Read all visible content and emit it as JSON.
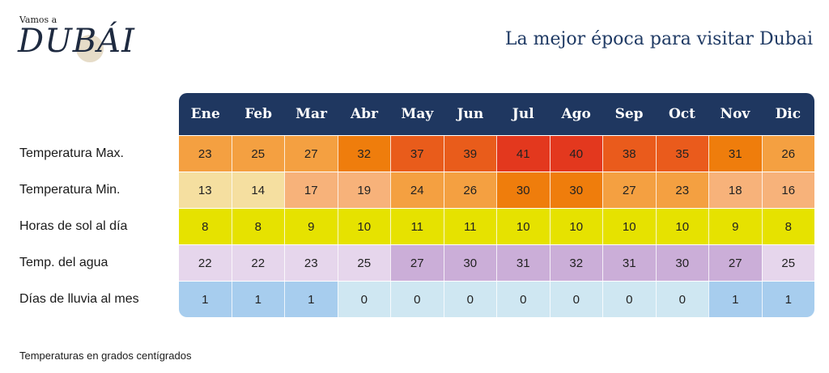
{
  "logo": {
    "small": "Vamos a",
    "big": "DUBÁI"
  },
  "title": "La mejor época para visitar Dubai",
  "months": [
    "Ene",
    "Feb",
    "Mar",
    "Abr",
    "May",
    "Jun",
    "Jul",
    "Ago",
    "Sep",
    "Oct",
    "Nov",
    "Dic"
  ],
  "rows": [
    {
      "label": "Temperatura Max.",
      "values": [
        "23",
        "25",
        "27",
        "32",
        "37",
        "39",
        "41",
        "40",
        "38",
        "35",
        "31",
        "26"
      ],
      "colors": [
        "#f4a041",
        "#f4a041",
        "#f4a041",
        "#ef7d0c",
        "#e95c1b",
        "#e95c1b",
        "#e3381e",
        "#e3381e",
        "#ea5b1c",
        "#ea5b1c",
        "#ef7d0c",
        "#f4a041"
      ]
    },
    {
      "label": "Temperatura Min.",
      "values": [
        "13",
        "14",
        "17",
        "19",
        "24",
        "26",
        "30",
        "30",
        "27",
        "23",
        "18",
        "16"
      ],
      "colors": [
        "#f5dfa0",
        "#f5dfa0",
        "#f7b27a",
        "#f7b27a",
        "#f4a041",
        "#f4a041",
        "#ef7d0c",
        "#ef7d0c",
        "#f4a041",
        "#f4a041",
        "#f7b27a",
        "#f7b27a"
      ]
    },
    {
      "label": "Horas de sol al día",
      "values": [
        "8",
        "8",
        "9",
        "10",
        "11",
        "11",
        "10",
        "10",
        "10",
        "10",
        "9",
        "8"
      ],
      "colors": [
        "#e6e200",
        "#e6e200",
        "#e6e200",
        "#e6e200",
        "#e6e200",
        "#e6e200",
        "#e6e200",
        "#e6e200",
        "#e6e200",
        "#e6e200",
        "#e6e200",
        "#e6e200"
      ]
    },
    {
      "label": "Temp. del agua",
      "values": [
        "22",
        "22",
        "23",
        "25",
        "27",
        "30",
        "31",
        "32",
        "31",
        "30",
        "27",
        "25"
      ],
      "colors": [
        "#e6d6ec",
        "#e6d6ec",
        "#e6d6ec",
        "#e6d6ec",
        "#cbaed8",
        "#cbaed8",
        "#cbaed8",
        "#cbaed8",
        "#cbaed8",
        "#cbaed8",
        "#cbaed8",
        "#e6d6ec"
      ]
    },
    {
      "label": "Días de lluvia al mes",
      "values": [
        "1",
        "1",
        "1",
        "0",
        "0",
        "0",
        "0",
        "0",
        "0",
        "0",
        "1",
        "1"
      ],
      "colors": [
        "#a7cdee",
        "#a7cdee",
        "#a7cdee",
        "#cfe7f2",
        "#cfe7f2",
        "#cfe7f2",
        "#cfe7f2",
        "#cfe7f2",
        "#cfe7f2",
        "#cfe7f2",
        "#a7cdee",
        "#a7cdee"
      ]
    }
  ],
  "footnote": "Temperaturas en grados centígrados",
  "colors": {
    "header_bg": "#1f3760",
    "title": "#1f3a64"
  }
}
